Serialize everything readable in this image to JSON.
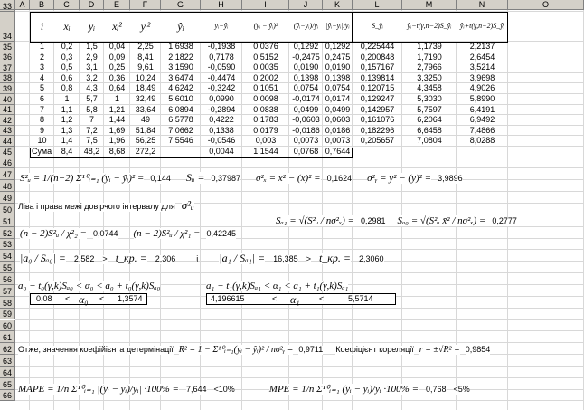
{
  "columns": [
    "A",
    "B",
    "C",
    "D",
    "E",
    "F",
    "G",
    "H",
    "I",
    "J",
    "K",
    "L",
    "M",
    "N",
    "O"
  ],
  "rows": [
    "33",
    "34",
    "35",
    "36",
    "37",
    "38",
    "39",
    "40",
    "41",
    "42",
    "43",
    "44",
    "45",
    "46",
    "47",
    "48",
    "49",
    "50",
    "51",
    "52",
    "53",
    "54",
    "55",
    "56",
    "57",
    "58",
    "59",
    "60",
    "61",
    "62",
    "63",
    "64",
    "65",
    "66"
  ],
  "table": {
    "headers": [
      "i",
      "xᵢ",
      "yᵢ",
      "xᵢ²",
      "yᵢ²",
      "ŷᵢ",
      "yᵢ−ŷᵢ",
      "(yᵢ − ŷᵢ)²",
      "(ŷᵢ−yᵢ)/yᵢ",
      "|ŷᵢ−yᵢ|/yᵢ",
      "S_ŷᵢ",
      "ŷᵢ−t(γ,n−2)S_ŷᵢ",
      "ŷᵢ+t(γ,n−2)S_ŷᵢ"
    ],
    "data": [
      [
        "1",
        "0,2",
        "1,5",
        "0,04",
        "2,25",
        "1,6938",
        "-0,1938",
        "0,0376",
        "0,1292",
        "0,1292",
        "0,225444",
        "1,1739",
        "2,2137"
      ],
      [
        "2",
        "0,3",
        "2,9",
        "0,09",
        "8,41",
        "2,1822",
        "0,7178",
        "0,5152",
        "-0,2475",
        "0,2475",
        "0,200848",
        "1,7190",
        "2,6454"
      ],
      [
        "3",
        "0,5",
        "3,1",
        "0,25",
        "9,61",
        "3,1590",
        "-0,0590",
        "0,0035",
        "0,0190",
        "0,0190",
        "0,157167",
        "2,7966",
        "3,5214"
      ],
      [
        "4",
        "0,6",
        "3,2",
        "0,36",
        "10,24",
        "3,6474",
        "-0,4474",
        "0,2002",
        "0,1398",
        "0,1398",
        "0,139814",
        "3,3250",
        "3,9698"
      ],
      [
        "5",
        "0,8",
        "4,3",
        "0,64",
        "18,49",
        "4,6242",
        "-0,3242",
        "0,1051",
        "0,0754",
        "0,0754",
        "0,120715",
        "4,3458",
        "4,9026"
      ],
      [
        "6",
        "1",
        "5,7",
        "1",
        "32,49",
        "5,6010",
        "0,0990",
        "0,0098",
        "-0,0174",
        "0,0174",
        "0,129247",
        "5,3030",
        "5,8990"
      ],
      [
        "7",
        "1,1",
        "5,8",
        "1,21",
        "33,64",
        "6,0894",
        "-0,2894",
        "0,0838",
        "0,0499",
        "0,0499",
        "0,142957",
        "5,7597",
        "6,4191"
      ],
      [
        "8",
        "1,2",
        "7",
        "1,44",
        "49",
        "6,5778",
        "0,4222",
        "0,1783",
        "-0,0603",
        "0,0603",
        "0,161076",
        "6,2064",
        "6,9492"
      ],
      [
        "9",
        "1,3",
        "7,2",
        "1,69",
        "51,84",
        "7,0662",
        "0,1338",
        "0,0179",
        "-0,0186",
        "0,0186",
        "0,182296",
        "6,6458",
        "7,4866"
      ],
      [
        "10",
        "1,4",
        "7,5",
        "1,96",
        "56,25",
        "7,5546",
        "-0,0546",
        "0,003",
        "0,0073",
        "0,0073",
        "0,205657",
        "7,0804",
        "8,0288"
      ]
    ],
    "sum_label": "Сума",
    "sums": [
      "8,4",
      "48,2",
      "8,68",
      "272,2",
      "",
      "0,0044",
      "1,1544",
      "0,0768",
      "0,7644"
    ]
  },
  "calc": {
    "su2_formula": "S²ᵤ = 1/(n−2) Σ¹⁰ᵢ₌₁ (yᵢ − ŷᵢ)² =",
    "su2": "0,144",
    "su_formula": "Sᵤ =",
    "su": "0,37987",
    "sx2_formula": "σ²ₓ = x̄² − (x̄)² =",
    "sx2": "0,1624",
    "sy2_formula": "σ²ᵧ = ȳ² − (ȳ)² =",
    "sy2": "3,9896",
    "interval_label": "Ліва і права межі довірчого інтервалу для",
    "interval_symbol": "σ²ᵤ",
    "left_formula": "(n − 2)S²ᵤ / χ²₂ =",
    "left": "0,0744",
    "right_formula": "(n − 2)S²ᵤ / χ²₁ =",
    "right": "0,42245",
    "sa1_formula": "Sₐ₁ = √(S²ᵤ / nσ²ₓ) =",
    "sa1": "0,2981",
    "sa0_formula": "Sₐ₀ = √(S²ᵤ x̄² / nσ²ₓ) =",
    "sa0": "0,2777",
    "t0_formula": "|a₀ / Sₐ₀| =",
    "t0": "2,582",
    "gt1": ">",
    "tkp1_formula": "t_кр. =",
    "tkp1": "2,306",
    "and": "і",
    "t1_formula": "|a₁ / Sₐ₁| =",
    "t1": "16,385",
    "gt2": ">",
    "tkp2_formula": "t_кр. =",
    "tkp2": "2,3060",
    "ci0_formula": "a₀ − t₀(γ,k)Sₐ₀ < α₀ < a₀ + t₀(γ,k)Sₐ₀",
    "ci1_formula": "a₁ − t₁(γ,k)Sₐ₁ < α₁ < a₁ + t₁(γ,k)Sₐ₁",
    "ci0": {
      "low": "0,08",
      "lt": "<",
      "sym": "α₀",
      "high": "1,3574"
    },
    "ci1": {
      "low": "4,196615",
      "lt": "<",
      "sym": "α₁",
      "high": "5,5714"
    },
    "det_label": "Отже, значення коефійієнта детермінації",
    "r2_formula": "R² = 1 − Σ¹⁰ᵢ₌₁(yᵢ − ŷᵢ)² / nσ²ᵧ =",
    "r2": "0,9711",
    "corr_label": "Коефіцієнт кореляції",
    "r_formula": "r = ±√R² =",
    "r": "0,9854",
    "mape_formula": "MAPE = 1/n Σ¹⁰ᵢ₌₁ |(ŷᵢ − yᵢ)/yᵢ| ·100% =",
    "mape": "7,644",
    "mape_limit": "<10%",
    "mpe_formula": "MPE = 1/n Σ¹⁰ᵢ₌₁ (ŷᵢ − yᵢ)/yᵢ ·100% =",
    "mpe": "0,768",
    "mpe_limit": "<5%"
  }
}
